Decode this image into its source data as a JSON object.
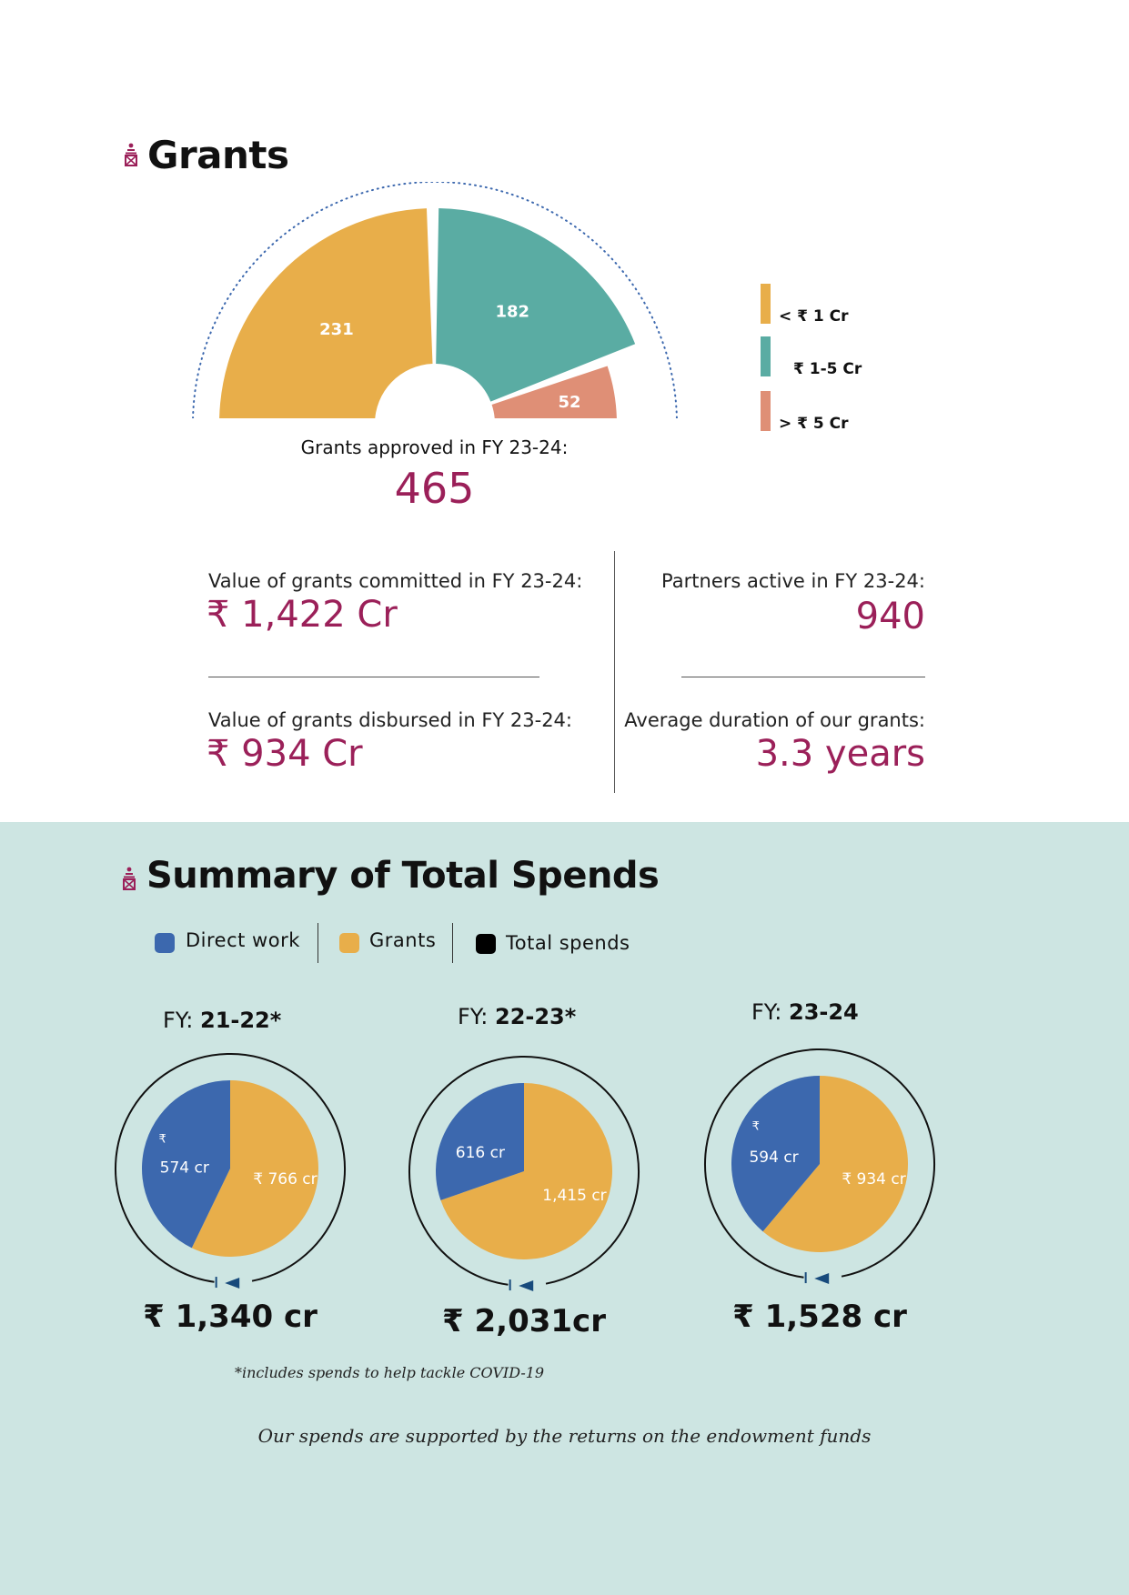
{
  "grants": {
    "title": "Grants",
    "approved_label": "Grants approved in FY 23-24:",
    "approved_value": "465",
    "stats": {
      "committed_label": "Value of grants committed in FY 23-24:",
      "committed_value": "₹ 1,422 Cr",
      "disbursed_label": "Value of grants disbursed in FY 23-24:",
      "disbursed_value": "₹ 934 Cr",
      "partners_label": "Partners active in FY 23-24:",
      "partners_value": "940",
      "duration_label": "Average duration of our grants:",
      "duration_value": "3.3 years"
    }
  },
  "spends": {
    "title": "Summary of Total Spends",
    "legend": {
      "direct": "Direct work",
      "grants": "Grants",
      "total": "Total spends"
    },
    "footnote": "*includes spends to help tackle COVID-19",
    "bottom_note": "Our spends are supported by the returns on the endowment funds",
    "rupee_mark": "₹"
  },
  "colors": {
    "accent": "#9b2059",
    "grants_yellow": "#e8ae4a",
    "mid_teal": "#5aaca3",
    "large_salmon": "#df8f76",
    "direct_blue": "#3c68ae",
    "bg_teal": "#cde5e2",
    "arrow_blue": "#174a7c"
  },
  "chart_data": [
    {
      "type": "pie",
      "categories": [
        "< ₹ 1 Cr",
        "₹ 1-5 Cr",
        "> ₹ 5 Cr"
      ],
      "values": [
        231,
        182,
        52
      ],
      "labels": [
        "231",
        "182",
        "52"
      ],
      "total": "465",
      "legend_placement": "right",
      "shape": "semicircle"
    },
    {
      "type": "pie",
      "title_prefix": "FY:",
      "title_value": "21-22*",
      "categories": [
        "Direct work",
        "Grants"
      ],
      "values": [
        574,
        766
      ],
      "labels": [
        "574 cr",
        "₹ 766 cr"
      ],
      "total_label": "₹ 1,340 cr"
    },
    {
      "type": "pie",
      "title_prefix": "FY:",
      "title_value": "22-23*",
      "categories": [
        "Direct work",
        "Grants"
      ],
      "values": [
        616,
        1415
      ],
      "labels": [
        "616 cr",
        "1,415 cr"
      ],
      "total_label": "₹ 2,031cr"
    },
    {
      "type": "pie",
      "title_prefix": "FY:",
      "title_value": "23-24",
      "categories": [
        "Direct work",
        "Grants"
      ],
      "values": [
        594,
        934
      ],
      "labels": [
        "594 cr",
        "₹ 934 cr"
      ],
      "total_label": "₹ 1,528 cr"
    }
  ]
}
